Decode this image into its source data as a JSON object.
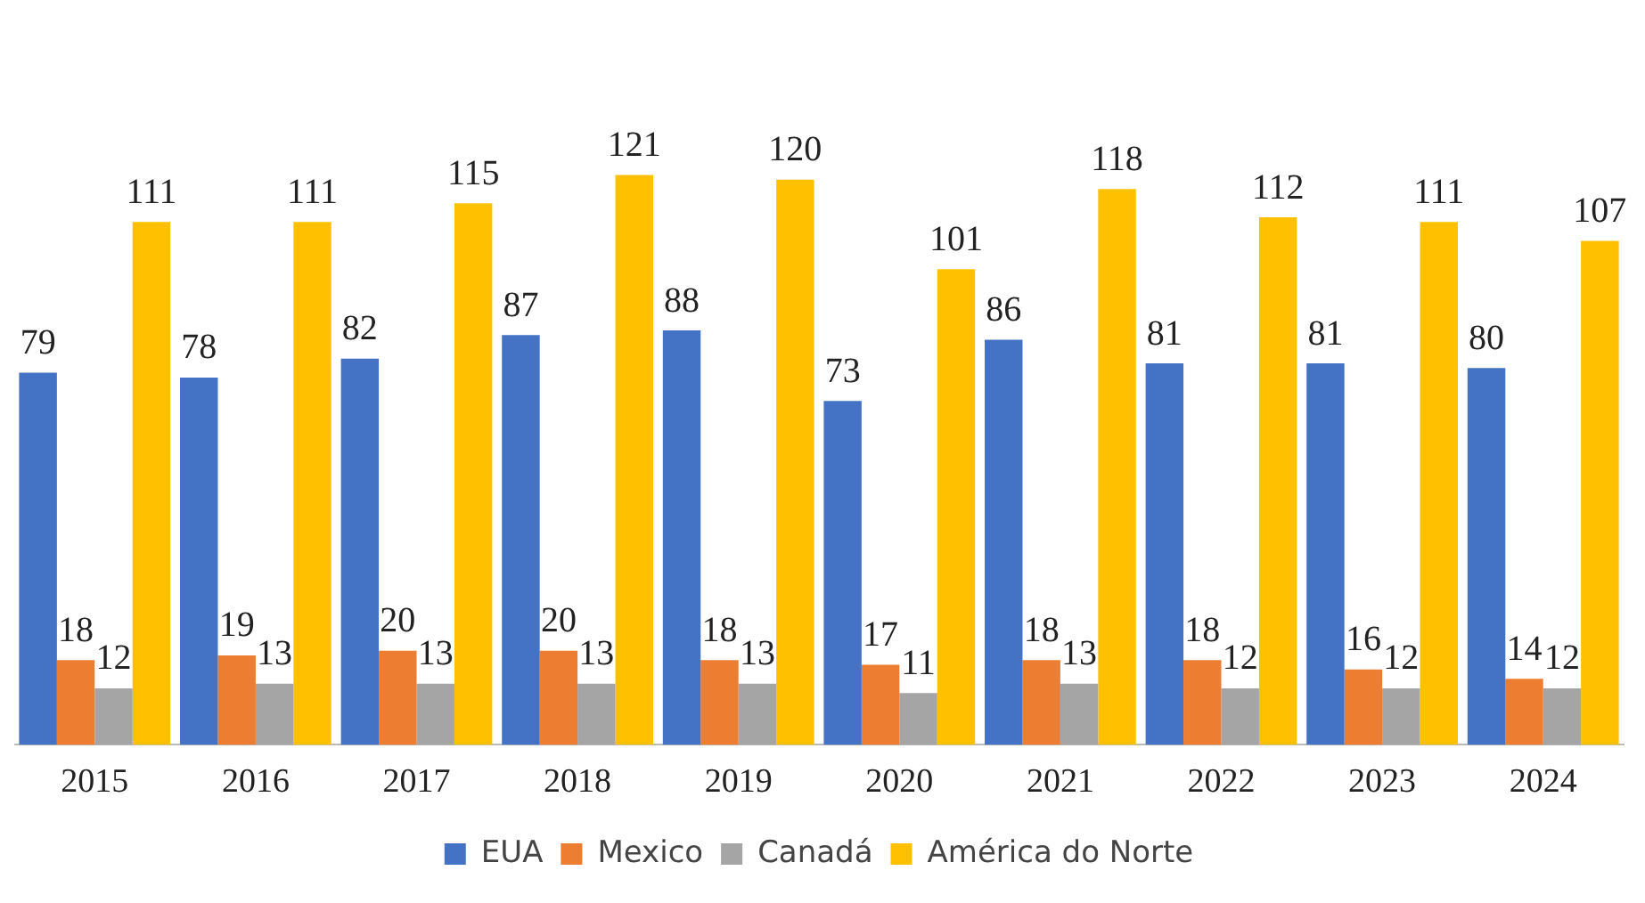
{
  "chart_data": {
    "type": "bar",
    "categories": [
      "2015",
      "2016",
      "2017",
      "2018",
      "2019",
      "2020",
      "2021",
      "2022",
      "2023",
      "2024"
    ],
    "series": [
      {
        "name": "EUA",
        "color": "#4472c4",
        "values": [
          79,
          78,
          82,
          87,
          88,
          73,
          86,
          81,
          81,
          80
        ]
      },
      {
        "name": "Mexico",
        "color": "#ed7d31",
        "values": [
          18,
          19,
          20,
          20,
          18,
          17,
          18,
          18,
          16,
          14
        ]
      },
      {
        "name": "Canadá",
        "color": "#a5a5a5",
        "values": [
          12,
          13,
          13,
          13,
          13,
          11,
          13,
          12,
          12,
          12
        ]
      },
      {
        "name": "América do Norte",
        "color": "#ffc000",
        "values": [
          111,
          111,
          115,
          121,
          120,
          101,
          118,
          112,
          111,
          107
        ]
      }
    ],
    "data_labels": true,
    "legend": "bottom",
    "grid": false,
    "tick_labels": "x"
  }
}
